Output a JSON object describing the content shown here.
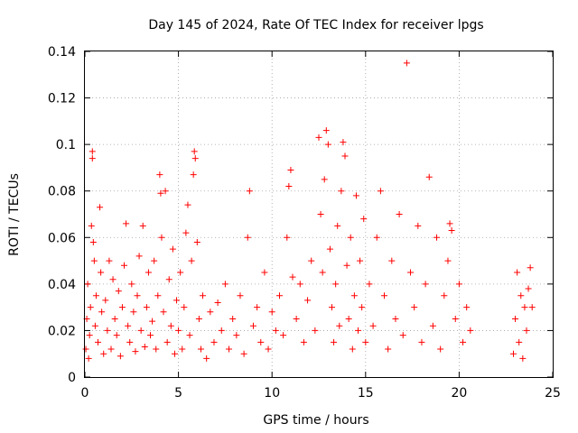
{
  "chart_data": {
    "type": "scatter",
    "title": "Day 145 of 2024, Rate Of TEC Index for receiver lpgs",
    "xlabel": "GPS time / hours",
    "ylabel": "ROTI / TECUs",
    "xlim": [
      0,
      25
    ],
    "ylim": [
      0,
      0.14
    ],
    "x_ticks": [
      "0",
      "5",
      "10",
      "15",
      "20",
      "25"
    ],
    "y_ticks": [
      "0",
      "0.02",
      "0.04",
      "0.06",
      "0.08",
      "0.1",
      "0.12",
      "0.14"
    ],
    "grid": true,
    "marker": "+",
    "color": "#ff0000",
    "series": [
      {
        "name": "ROTI",
        "points": [
          [
            0.05,
            0.012
          ],
          [
            0.1,
            0.025
          ],
          [
            0.15,
            0.04
          ],
          [
            0.2,
            0.008
          ],
          [
            0.25,
            0.018
          ],
          [
            0.3,
            0.03
          ],
          [
            0.35,
            0.065
          ],
          [
            0.4,
            0.097
          ],
          [
            0.4,
            0.094
          ],
          [
            0.45,
            0.058
          ],
          [
            0.5,
            0.05
          ],
          [
            0.55,
            0.022
          ],
          [
            0.6,
            0.035
          ],
          [
            0.7,
            0.015
          ],
          [
            0.8,
            0.073
          ],
          [
            0.85,
            0.045
          ],
          [
            0.9,
            0.028
          ],
          [
            1.0,
            0.01
          ],
          [
            1.1,
            0.033
          ],
          [
            1.2,
            0.02
          ],
          [
            1.3,
            0.05
          ],
          [
            1.4,
            0.012
          ],
          [
            1.5,
            0.042
          ],
          [
            1.6,
            0.025
          ],
          [
            1.7,
            0.018
          ],
          [
            1.8,
            0.037
          ],
          [
            1.9,
            0.009
          ],
          [
            2.0,
            0.03
          ],
          [
            2.1,
            0.048
          ],
          [
            2.2,
            0.066
          ],
          [
            2.3,
            0.022
          ],
          [
            2.4,
            0.015
          ],
          [
            2.5,
            0.04
          ],
          [
            2.6,
            0.028
          ],
          [
            2.7,
            0.011
          ],
          [
            2.8,
            0.035
          ],
          [
            2.9,
            0.052
          ],
          [
            3.0,
            0.02
          ],
          [
            3.1,
            0.065
          ],
          [
            3.2,
            0.013
          ],
          [
            3.3,
            0.03
          ],
          [
            3.4,
            0.045
          ],
          [
            3.5,
            0.018
          ],
          [
            3.6,
            0.024
          ],
          [
            3.7,
            0.05
          ],
          [
            3.8,
            0.012
          ],
          [
            3.9,
            0.035
          ],
          [
            4.0,
            0.087
          ],
          [
            4.05,
            0.079
          ],
          [
            4.1,
            0.06
          ],
          [
            4.2,
            0.028
          ],
          [
            4.3,
            0.08
          ],
          [
            4.4,
            0.015
          ],
          [
            4.5,
            0.042
          ],
          [
            4.6,
            0.022
          ],
          [
            4.7,
            0.055
          ],
          [
            4.8,
            0.01
          ],
          [
            4.9,
            0.033
          ],
          [
            5.0,
            0.02
          ],
          [
            5.1,
            0.045
          ],
          [
            5.2,
            0.012
          ],
          [
            5.3,
            0.03
          ],
          [
            5.4,
            0.062
          ],
          [
            5.5,
            0.074
          ],
          [
            5.6,
            0.018
          ],
          [
            5.7,
            0.05
          ],
          [
            5.8,
            0.087
          ],
          [
            5.85,
            0.097
          ],
          [
            5.9,
            0.094
          ],
          [
            6.0,
            0.058
          ],
          [
            6.1,
            0.025
          ],
          [
            6.2,
            0.012
          ],
          [
            6.3,
            0.035
          ],
          [
            6.5,
            0.008
          ],
          [
            6.7,
            0.028
          ],
          [
            6.9,
            0.015
          ],
          [
            7.1,
            0.032
          ],
          [
            7.3,
            0.02
          ],
          [
            7.5,
            0.04
          ],
          [
            7.7,
            0.012
          ],
          [
            7.9,
            0.025
          ],
          [
            8.1,
            0.018
          ],
          [
            8.3,
            0.035
          ],
          [
            8.5,
            0.01
          ],
          [
            8.7,
            0.06
          ],
          [
            8.8,
            0.08
          ],
          [
            9.0,
            0.022
          ],
          [
            9.2,
            0.03
          ],
          [
            9.4,
            0.015
          ],
          [
            9.6,
            0.045
          ],
          [
            9.8,
            0.012
          ],
          [
            10.0,
            0.028
          ],
          [
            10.2,
            0.02
          ],
          [
            10.4,
            0.035
          ],
          [
            10.6,
            0.018
          ],
          [
            10.8,
            0.06
          ],
          [
            10.9,
            0.082
          ],
          [
            11.0,
            0.089
          ],
          [
            11.1,
            0.043
          ],
          [
            11.3,
            0.025
          ],
          [
            11.5,
            0.04
          ],
          [
            11.7,
            0.015
          ],
          [
            11.9,
            0.033
          ],
          [
            12.1,
            0.05
          ],
          [
            12.3,
            0.02
          ],
          [
            12.5,
            0.103
          ],
          [
            12.6,
            0.07
          ],
          [
            12.7,
            0.045
          ],
          [
            12.8,
            0.085
          ],
          [
            12.9,
            0.106
          ],
          [
            13.0,
            0.1
          ],
          [
            13.1,
            0.055
          ],
          [
            13.2,
            0.03
          ],
          [
            13.3,
            0.015
          ],
          [
            13.4,
            0.04
          ],
          [
            13.5,
            0.065
          ],
          [
            13.6,
            0.022
          ],
          [
            13.7,
            0.08
          ],
          [
            13.8,
            0.101
          ],
          [
            13.9,
            0.095
          ],
          [
            14.0,
            0.048
          ],
          [
            14.1,
            0.025
          ],
          [
            14.2,
            0.06
          ],
          [
            14.3,
            0.012
          ],
          [
            14.4,
            0.035
          ],
          [
            14.5,
            0.078
          ],
          [
            14.6,
            0.02
          ],
          [
            14.7,
            0.05
          ],
          [
            14.8,
            0.03
          ],
          [
            14.9,
            0.068
          ],
          [
            15.0,
            0.015
          ],
          [
            15.2,
            0.04
          ],
          [
            15.4,
            0.022
          ],
          [
            15.6,
            0.06
          ],
          [
            15.8,
            0.08
          ],
          [
            16.0,
            0.035
          ],
          [
            16.2,
            0.012
          ],
          [
            16.4,
            0.05
          ],
          [
            16.6,
            0.025
          ],
          [
            16.8,
            0.07
          ],
          [
            17.0,
            0.018
          ],
          [
            17.2,
            0.135
          ],
          [
            17.4,
            0.045
          ],
          [
            17.6,
            0.03
          ],
          [
            17.8,
            0.065
          ],
          [
            18.0,
            0.015
          ],
          [
            18.2,
            0.04
          ],
          [
            18.4,
            0.086
          ],
          [
            18.6,
            0.022
          ],
          [
            18.8,
            0.06
          ],
          [
            19.0,
            0.012
          ],
          [
            19.2,
            0.035
          ],
          [
            19.4,
            0.05
          ],
          [
            19.5,
            0.066
          ],
          [
            19.6,
            0.063
          ],
          [
            19.8,
            0.025
          ],
          [
            20.0,
            0.04
          ],
          [
            20.2,
            0.015
          ],
          [
            20.4,
            0.03
          ],
          [
            20.6,
            0.02
          ],
          [
            22.9,
            0.01
          ],
          [
            23.0,
            0.025
          ],
          [
            23.1,
            0.045
          ],
          [
            23.2,
            0.015
          ],
          [
            23.3,
            0.035
          ],
          [
            23.4,
            0.008
          ],
          [
            23.5,
            0.03
          ],
          [
            23.6,
            0.02
          ],
          [
            23.7,
            0.038
          ],
          [
            23.8,
            0.047
          ],
          [
            23.9,
            0.03
          ]
        ]
      }
    ]
  }
}
